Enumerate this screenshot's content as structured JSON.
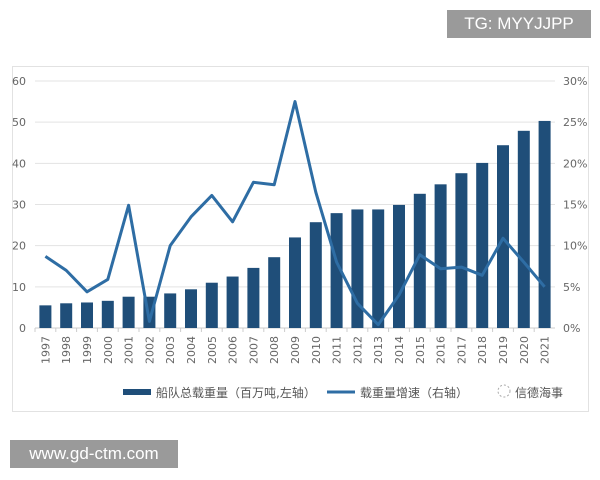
{
  "watermark_top": "TG: MYYJJPP",
  "watermark_bottom": "www.gd-ctm.com",
  "logo_text": "信德海事",
  "chart_data": {
    "type": "bar+line",
    "categories": [
      "1997",
      "1998",
      "1999",
      "2000",
      "2001",
      "2002",
      "2003",
      "2004",
      "2005",
      "2006",
      "2007",
      "2008",
      "2009",
      "2010",
      "2011",
      "2012",
      "2013",
      "2014",
      "2015",
      "2016",
      "2017",
      "2018",
      "2019",
      "2020",
      "2021"
    ],
    "series": [
      {
        "name": "船队总载重量（百万吨,左轴）",
        "type": "bar",
        "axis": "left",
        "color": "#1f4e79",
        "values": [
          5.5,
          6.0,
          6.2,
          6.6,
          7.6,
          7.6,
          8.4,
          9.4,
          11.0,
          12.5,
          14.6,
          17.2,
          22.0,
          25.7,
          27.9,
          28.8,
          28.8,
          29.9,
          32.6,
          34.9,
          37.6,
          40.1,
          44.4,
          47.9,
          50.3
        ]
      },
      {
        "name": "载重量增速（右轴）",
        "type": "line",
        "axis": "right",
        "color": "#2e6da4",
        "values": [
          8.7,
          7.0,
          4.4,
          5.9,
          14.9,
          0.8,
          10.0,
          13.5,
          16.1,
          12.9,
          17.7,
          17.4,
          27.5,
          16.5,
          8.0,
          3.0,
          0.4,
          4.0,
          8.9,
          7.2,
          7.4,
          6.4,
          10.9,
          8.0,
          5.0
        ]
      }
    ],
    "left_axis": {
      "ylim": [
        0,
        60
      ],
      "ticks": [
        "0",
        "10",
        "20",
        "30",
        "40",
        "50",
        "60"
      ]
    },
    "right_axis": {
      "ylim": [
        0,
        30
      ],
      "ticks": [
        "0%",
        "5%",
        "10%",
        "15%",
        "20%",
        "25%",
        "30%"
      ]
    },
    "grid": true,
    "legend_position": "bottom"
  }
}
